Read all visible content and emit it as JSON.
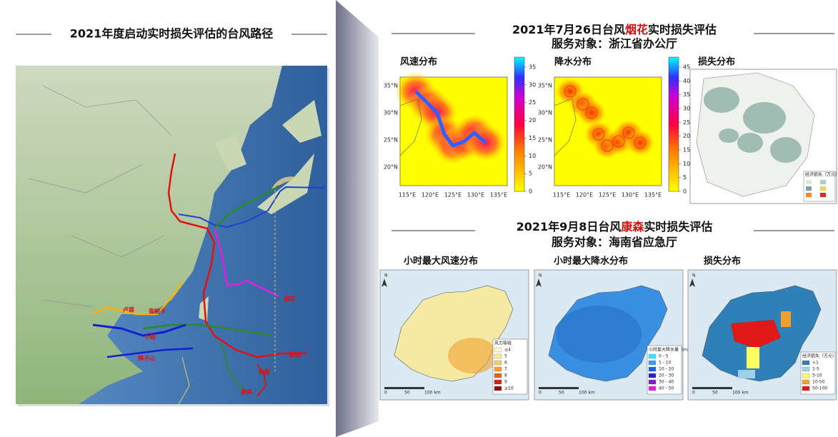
{
  "left": {
    "title": "2021年度启动实时损失评估的台风路径",
    "typhoon_labels": [
      "卢碧",
      "查帕卡",
      "小熊",
      "狮子山",
      "烟花",
      "灿都",
      "康森",
      "圆规"
    ]
  },
  "events": [
    {
      "title_prefix": "2021年7月26日台风",
      "typhoon": "烟花",
      "title_suffix": "实时损失评估",
      "client": "服务对象：浙江省办公厅",
      "panels": [
        {
          "label": "风速分布",
          "colorbar_ticks": [
            0,
            5,
            10,
            15,
            20,
            25,
            30,
            35
          ]
        },
        {
          "label": "降水分布",
          "colorbar_ticks": [
            0,
            5,
            10,
            15,
            20,
            25,
            30,
            35,
            40,
            45
          ]
        },
        {
          "label": "损失分布",
          "legend_title": "经济损失（万元）"
        }
      ],
      "lon_ticks": [
        "115°E",
        "120°E",
        "125°E",
        "130°E",
        "135°E"
      ],
      "lat_ticks": [
        "35°N",
        "30°N",
        "25°N",
        "20°N"
      ]
    },
    {
      "title_prefix": "2021年9月8日台风",
      "typhoon": "康森",
      "title_suffix": "实时损失评估",
      "client": "服务对象：海南省应急厅",
      "panels": [
        {
          "label": "小时最大风速分布",
          "legend_title": "风力等级",
          "legend": [
            "≤4",
            "5",
            "6",
            "7",
            "8",
            "9",
            "≥10"
          ]
        },
        {
          "label": "小时最大降水分布",
          "legend_title": "小时最大降水量（mm）",
          "legend": [
            "0 - 5",
            "5 - 10",
            "10 - 20",
            "20 - 30",
            "30 - 40",
            "40 - 50"
          ]
        },
        {
          "label": "损失分布",
          "legend_title": "经济损失（万元）",
          "legend": [
            "<1",
            "1-5",
            "5-10",
            "10-50",
            "50-100"
          ]
        }
      ],
      "scale_labels": [
        "0",
        "50",
        "100 km"
      ],
      "north": "N"
    }
  ]
}
